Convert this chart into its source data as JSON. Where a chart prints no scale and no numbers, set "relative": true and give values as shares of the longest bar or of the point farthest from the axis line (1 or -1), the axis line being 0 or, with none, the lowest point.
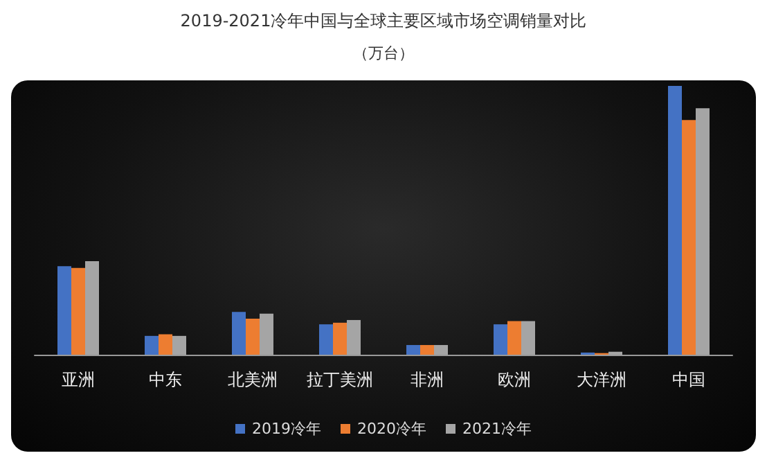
{
  "chart_data": {
    "type": "bar",
    "title": "2019-2021冷年中国与全球主要区域市场空调销量对比",
    "subtitle": "（万台）",
    "categories": [
      "亚洲",
      "中东",
      "北美洲",
      "拉丁美洲",
      "非洲",
      "欧洲",
      "大洋洲",
      "中国"
    ],
    "relative": true,
    "legend": "bottom",
    "grid": false,
    "series": [
      {
        "name": "2019冷年",
        "color": "#4472c4",
        "values": [
          0.329,
          0.07,
          0.159,
          0.113,
          0.036,
          0.113,
          0.008,
          1
        ]
      },
      {
        "name": "2020冷年",
        "color": "#ed7d31",
        "values": [
          0.323,
          0.076,
          0.134,
          0.119,
          0.036,
          0.125,
          0.006,
          0.873
        ]
      },
      {
        "name": "2021冷年",
        "color": "#a5a5a5",
        "values": [
          0.348,
          0.07,
          0.153,
          0.129,
          0.036,
          0.125,
          0.011,
          0.917
        ]
      }
    ]
  }
}
